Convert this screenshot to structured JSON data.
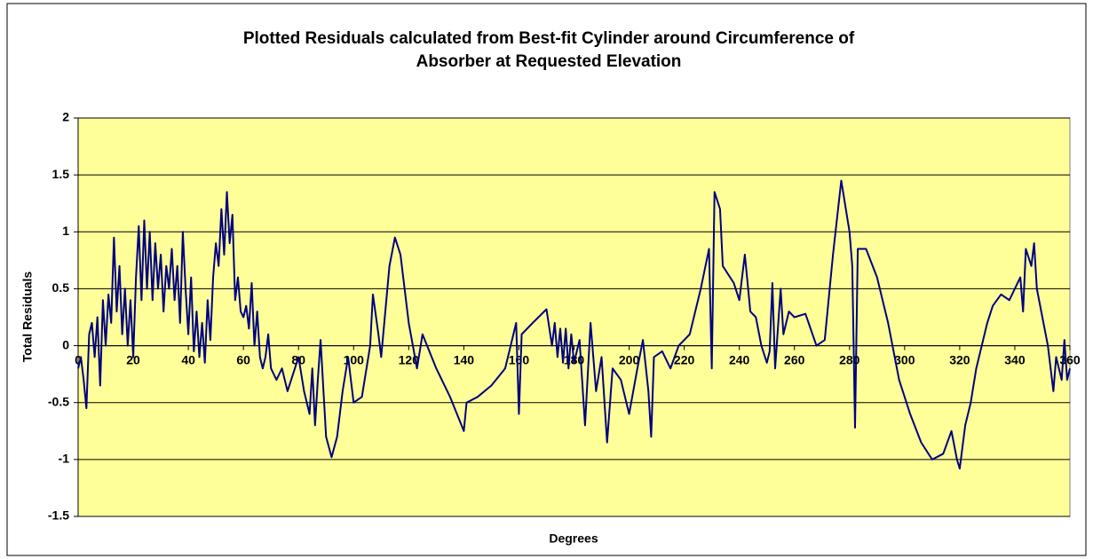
{
  "chart_data": {
    "type": "line",
    "title": [
      "Plotted Residuals calculated from Best-fit Cylinder around Circumference of",
      "Absorber at Requested Elevation"
    ],
    "x_label": "Degrees",
    "y_label": "Total Residuals",
    "xlim": [
      0,
      360
    ],
    "xticks": [
      0,
      20,
      40,
      60,
      80,
      100,
      120,
      140,
      160,
      180,
      200,
      220,
      240,
      260,
      280,
      300,
      320,
      340,
      360
    ],
    "ylim": [
      -1.5,
      2
    ],
    "yticks": [
      -1.5,
      -1,
      -0.5,
      0,
      0.5,
      1,
      1.5,
      2
    ],
    "grid": true,
    "background": "#ffff99",
    "series": [
      {
        "name": "Total Residuals",
        "color": "#000080",
        "x": [
          0,
          1,
          2,
          3,
          4,
          5,
          6,
          7,
          8,
          9,
          10,
          11,
          12,
          13,
          14,
          15,
          16,
          17,
          18,
          19,
          20,
          21,
          22,
          23,
          24,
          25,
          26,
          27,
          28,
          29,
          30,
          31,
          32,
          33,
          34,
          35,
          36,
          37,
          38,
          39,
          40,
          41,
          42,
          43,
          44,
          45,
          46,
          47,
          48,
          49,
          50,
          51,
          52,
          53,
          54,
          55,
          56,
          57,
          58,
          59,
          60,
          61,
          62,
          63,
          64,
          65,
          66,
          67,
          68,
          69,
          70,
          72,
          74,
          76,
          78,
          80,
          82,
          84,
          85,
          86,
          87,
          88,
          90,
          92,
          94,
          96,
          98,
          100,
          103,
          106,
          107,
          109,
          110,
          113,
          115,
          117,
          120,
          123,
          125,
          130,
          135,
          140,
          141,
          145,
          150,
          155,
          157,
          159,
          160,
          161,
          165,
          170,
          172,
          173,
          174,
          175,
          176,
          177,
          178,
          179,
          180,
          182,
          184,
          186,
          188,
          190,
          192,
          194,
          197,
          200,
          203,
          205,
          207,
          208,
          209,
          212,
          215,
          218,
          222,
          226,
          229,
          230,
          231,
          233,
          234,
          238,
          240,
          242,
          244,
          246,
          248,
          250,
          251,
          252,
          253,
          255,
          256,
          258,
          260,
          264,
          268,
          271,
          274,
          277,
          280,
          281,
          282,
          283,
          286,
          290,
          294,
          298,
          302,
          306,
          310,
          314,
          317,
          319,
          320,
          322,
          324,
          326,
          328,
          330,
          332,
          335,
          338,
          340,
          342,
          343,
          344,
          346,
          347,
          348,
          350,
          352,
          354,
          355,
          357,
          358,
          359,
          360
        ],
        "values": [
          -0.2,
          -0.1,
          -0.3,
          -0.55,
          0.1,
          0.2,
          -0.1,
          0.25,
          -0.35,
          0.4,
          0.0,
          0.45,
          0.2,
          0.95,
          0.3,
          0.7,
          0.1,
          0.5,
          0.0,
          0.4,
          -0.1,
          0.6,
          1.05,
          0.4,
          1.1,
          0.5,
          1.0,
          0.4,
          0.9,
          0.5,
          0.8,
          0.3,
          0.7,
          0.5,
          0.85,
          0.4,
          0.7,
          0.2,
          1.0,
          0.5,
          0.1,
          0.6,
          -0.05,
          0.3,
          -0.1,
          0.2,
          -0.15,
          0.4,
          0.05,
          0.6,
          0.9,
          0.7,
          1.2,
          0.8,
          1.35,
          0.9,
          1.15,
          0.4,
          0.6,
          0.3,
          0.25,
          0.35,
          0.15,
          0.55,
          0.0,
          0.3,
          -0.1,
          -0.2,
          -0.1,
          0.1,
          -0.2,
          -0.3,
          -0.2,
          -0.4,
          -0.25,
          -0.1,
          -0.4,
          -0.6,
          -0.2,
          -0.7,
          -0.3,
          0.05,
          -0.8,
          -0.98,
          -0.8,
          -0.4,
          -0.1,
          -0.5,
          -0.45,
          0.0,
          0.45,
          0.1,
          -0.1,
          0.7,
          0.95,
          0.8,
          0.2,
          -0.2,
          0.1,
          -0.2,
          -0.45,
          -0.75,
          -0.5,
          -0.45,
          -0.35,
          -0.2,
          0.0,
          0.2,
          -0.6,
          0.1,
          0.2,
          0.32,
          0.0,
          0.2,
          -0.1,
          0.15,
          -0.15,
          0.15,
          -0.2,
          0.1,
          -0.15,
          0.05,
          -0.7,
          0.2,
          -0.4,
          -0.1,
          -0.85,
          -0.2,
          -0.3,
          -0.6,
          -0.2,
          0.05,
          -0.4,
          -0.8,
          -0.1,
          -0.05,
          -0.2,
          0.0,
          0.1,
          0.5,
          0.85,
          -0.2,
          1.35,
          1.2,
          0.7,
          0.55,
          0.4,
          0.8,
          0.3,
          0.25,
          0.0,
          -0.15,
          -0.05,
          0.55,
          -0.2,
          0.5,
          0.1,
          0.3,
          0.25,
          0.28,
          0.0,
          0.05,
          0.8,
          1.45,
          1.0,
          0.7,
          -0.72,
          0.85,
          0.85,
          0.6,
          0.2,
          -0.3,
          -0.6,
          -0.85,
          -1.0,
          -0.95,
          -0.75,
          -1.0,
          -1.08,
          -0.7,
          -0.5,
          -0.2,
          0.0,
          0.2,
          0.35,
          0.45,
          0.4,
          0.5,
          0.6,
          0.3,
          0.85,
          0.7,
          0.9,
          0.5,
          0.25,
          0.0,
          -0.4,
          -0.1,
          -0.3,
          0.05,
          -0.3,
          -0.2
        ]
      }
    ]
  }
}
